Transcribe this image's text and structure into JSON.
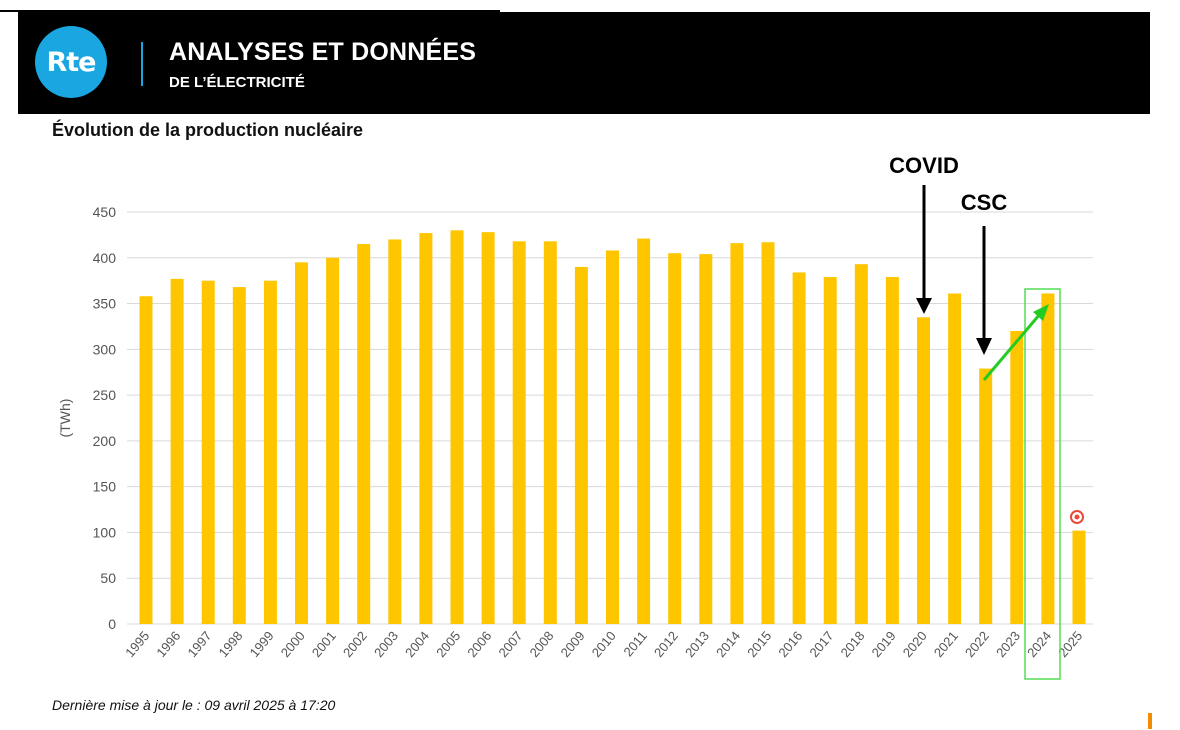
{
  "header": {
    "logo_text": "Rte",
    "title": "ANALYSES ET DONNÉES",
    "subtitle": "DE L’ÉLECTRICITÉ"
  },
  "chart_title": "Évolution de la production nucléaire",
  "footer_note": "Dernière mise à jour le : 09 avril 2025 à 17:20",
  "annotations": {
    "covid_label": "COVID",
    "csc_label": "CSC"
  },
  "colors": {
    "bar": "#ffc600",
    "grid": "#d9d9d9",
    "axis_text": "#555555",
    "header_bg": "#000000",
    "logo_blue": "#1aa7e1",
    "arrow_green": "#22cc22",
    "highlight_box": "#55dd55"
  },
  "chart_data": {
    "type": "bar",
    "title": "Évolution de la production nucléaire",
    "xlabel": "",
    "ylabel": "(TWh)",
    "ylim": [
      0,
      450
    ],
    "yticks": [
      0,
      50,
      100,
      150,
      200,
      250,
      300,
      350,
      400,
      450
    ],
    "grid": true,
    "categories": [
      "1995",
      "1996",
      "1997",
      "1998",
      "1999",
      "2000",
      "2001",
      "2002",
      "2003",
      "2004",
      "2005",
      "2006",
      "2007",
      "2008",
      "2009",
      "2010",
      "2011",
      "2012",
      "2013",
      "2014",
      "2015",
      "2016",
      "2017",
      "2018",
      "2019",
      "2020",
      "2021",
      "2022",
      "2023",
      "2024",
      "2025"
    ],
    "values": [
      358,
      377,
      375,
      368,
      375,
      395,
      400,
      415,
      420,
      427,
      430,
      428,
      418,
      418,
      390,
      408,
      421,
      405,
      404,
      416,
      417,
      384,
      379,
      393,
      379,
      335,
      361,
      279,
      320,
      361,
      102
    ],
    "annotations": [
      {
        "label": "COVID",
        "category": "2020"
      },
      {
        "label": "CSC",
        "category": "2022"
      }
    ],
    "highlight_category": "2024",
    "trend_arrow": {
      "from": "2022",
      "to": "2024"
    }
  }
}
